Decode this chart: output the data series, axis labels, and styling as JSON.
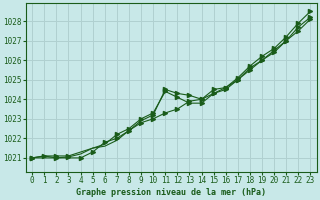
{
  "title": "Graphe pression niveau de la mer (hPa)",
  "bg_color": "#c8e8e8",
  "grid_color": "#b0d0d0",
  "line_color": "#1a5c1a",
  "x_ticks": [
    0,
    1,
    2,
    3,
    4,
    5,
    6,
    7,
    8,
    9,
    10,
    11,
    12,
    13,
    14,
    15,
    16,
    17,
    18,
    19,
    20,
    21,
    22,
    23
  ],
  "y_ticks": [
    1021,
    1022,
    1023,
    1024,
    1025,
    1026,
    1027,
    1028
  ],
  "ylim": [
    1020.3,
    1028.9
  ],
  "xlim": [
    -0.5,
    23.5
  ],
  "lines": [
    {
      "x": [
        0,
        1,
        2,
        3,
        4,
        5,
        6,
        7,
        8,
        9,
        10,
        11,
        12,
        13,
        14,
        15,
        16,
        17,
        18,
        19,
        20,
        21,
        22,
        23
      ],
      "y": [
        1021.0,
        1021.1,
        1021.1,
        1021.1,
        1021.3,
        1021.5,
        1021.6,
        1021.9,
        1022.4,
        1022.9,
        1023.2,
        1024.5,
        1024.3,
        1024.2,
        1024.0,
        1024.5,
        1024.6,
        1025.1,
        1025.7,
        1026.2,
        1026.6,
        1027.2,
        1027.9,
        1028.5
      ],
      "marker_x": [
        0,
        1,
        2,
        3,
        10,
        11,
        12,
        13,
        14,
        15,
        16,
        17,
        18,
        19,
        20,
        21,
        22,
        23
      ],
      "marker_y": [
        1021.0,
        1021.1,
        1021.1,
        1021.1,
        1023.2,
        1024.5,
        1024.3,
        1024.2,
        1024.0,
        1024.5,
        1024.6,
        1025.1,
        1025.7,
        1026.2,
        1026.6,
        1027.2,
        1027.9,
        1028.5
      ]
    },
    {
      "x": [
        0,
        1,
        2,
        3,
        4,
        5,
        6,
        7,
        8,
        9,
        10,
        11,
        12,
        13,
        14,
        15,
        16,
        17,
        18,
        19,
        20,
        21,
        22,
        23
      ],
      "y": [
        1021.0,
        1021.1,
        1021.0,
        1021.05,
        1021.2,
        1021.5,
        1021.7,
        1022.2,
        1022.5,
        1023.0,
        1023.3,
        1024.4,
        1024.1,
        1023.8,
        1023.8,
        1024.3,
        1024.5,
        1025.0,
        1025.6,
        1026.0,
        1026.4,
        1027.0,
        1027.7,
        1028.2
      ],
      "marker_x": [
        0,
        2,
        3,
        7,
        8,
        9,
        10,
        11,
        12,
        13,
        14,
        15,
        16,
        17,
        18,
        19,
        20,
        21,
        22,
        23
      ],
      "marker_y": [
        1021.0,
        1021.0,
        1021.05,
        1022.2,
        1022.5,
        1023.0,
        1023.3,
        1024.4,
        1024.1,
        1023.8,
        1023.8,
        1024.3,
        1024.5,
        1025.0,
        1025.6,
        1026.0,
        1026.4,
        1027.0,
        1027.7,
        1028.2
      ]
    },
    {
      "x": [
        0,
        1,
        2,
        3,
        4,
        5,
        6,
        7,
        8,
        9,
        10,
        11,
        12,
        13,
        14,
        15,
        16,
        17,
        18,
        19,
        20,
        21,
        22,
        23
      ],
      "y": [
        1021.0,
        1021.0,
        1021.0,
        1021.0,
        1021.0,
        1021.3,
        1021.8,
        1022.0,
        1022.4,
        1022.8,
        1023.0,
        1023.3,
        1023.5,
        1023.9,
        1024.0,
        1024.3,
        1024.6,
        1025.0,
        1025.5,
        1026.0,
        1026.5,
        1027.0,
        1027.5,
        1028.1
      ],
      "marker_x": [
        0,
        4,
        5,
        6,
        7,
        8,
        9,
        10,
        11,
        12,
        13,
        14,
        15,
        16,
        17,
        18,
        19,
        20,
        21,
        22,
        23
      ],
      "marker_y": [
        1021.0,
        1021.0,
        1021.3,
        1021.8,
        1022.0,
        1022.4,
        1022.8,
        1023.0,
        1023.3,
        1023.5,
        1023.9,
        1024.0,
        1024.3,
        1024.6,
        1025.0,
        1025.5,
        1026.0,
        1026.5,
        1027.0,
        1027.5,
        1028.1
      ]
    }
  ],
  "tick_fontsize": 5.5,
  "label_fontsize": 6.0
}
